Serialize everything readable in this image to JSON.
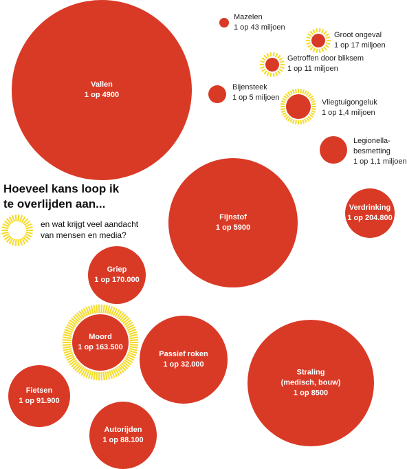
{
  "header": {
    "title_lines": [
      "Hoeveel kans loop ik",
      "te overlijden aan..."
    ]
  },
  "legend": {
    "icon": "sunburst-ring-icon",
    "text_lines": [
      "en wat krijgt veel aandacht",
      "van mensen en media?"
    ]
  },
  "colors": {
    "bubble": "#d93a26",
    "attention_ray": "#f4dc2f",
    "text_dark": "#111111",
    "text_light": "#ffffff"
  },
  "causes": [
    {
      "id": "vallen",
      "lines": [
        "Vallen",
        "1 op 4900"
      ],
      "odds": 4900,
      "media_attention": false
    },
    {
      "id": "mazelen",
      "lines": [
        "Mazelen",
        "1 op 43 miljoen"
      ],
      "odds": 43000000,
      "media_attention": false
    },
    {
      "id": "groot-ongeval",
      "lines": [
        "Groot ongeval",
        "1 op 17 miljoen"
      ],
      "odds": 17000000,
      "media_attention": true
    },
    {
      "id": "getroffen-door-bliksem",
      "lines": [
        "Getroffen door bliksem",
        "1 op 11 miljoen"
      ],
      "odds": 11000000,
      "media_attention": true
    },
    {
      "id": "bijensteek",
      "lines": [
        "Bijensteek",
        "1 op 5 miljoen"
      ],
      "odds": 5000000,
      "media_attention": false
    },
    {
      "id": "vliegtuigongeluk",
      "lines": [
        "Vliegtuigongeluk",
        "1 op 1,4 miljoen"
      ],
      "odds": 1400000,
      "media_attention": true
    },
    {
      "id": "legionellabesmetting",
      "lines": [
        "Legionella-",
        "besmetting",
        "1 op 1,1 miljoen"
      ],
      "odds": 1100000,
      "media_attention": false
    },
    {
      "id": "fijnstof",
      "lines": [
        "Fijnstof",
        "1 op 5900"
      ],
      "odds": 5900,
      "media_attention": false
    },
    {
      "id": "verdrinking",
      "lines": [
        "Verdrinking",
        "1 op 204.800"
      ],
      "odds": 204800,
      "media_attention": false
    },
    {
      "id": "griep",
      "lines": [
        "Griep",
        "1 op 170.000"
      ],
      "odds": 170000,
      "media_attention": false
    },
    {
      "id": "moord",
      "lines": [
        "Moord",
        "1 op 163.500"
      ],
      "odds": 163500,
      "media_attention": true
    },
    {
      "id": "passief-roken",
      "lines": [
        "Passief roken",
        "1 op 32.000"
      ],
      "odds": 32000,
      "media_attention": false
    },
    {
      "id": "straling",
      "lines": [
        "Straling",
        "(medisch, bouw)",
        "1 op 8500"
      ],
      "odds": 8500,
      "media_attention": false
    },
    {
      "id": "fietsen",
      "lines": [
        "Fietsen",
        "1 op 91.900"
      ],
      "odds": 91900,
      "media_attention": false
    },
    {
      "id": "autorijden",
      "lines": [
        "Autorijden",
        "1 op 88.100"
      ],
      "odds": 88100,
      "media_attention": false
    }
  ]
}
